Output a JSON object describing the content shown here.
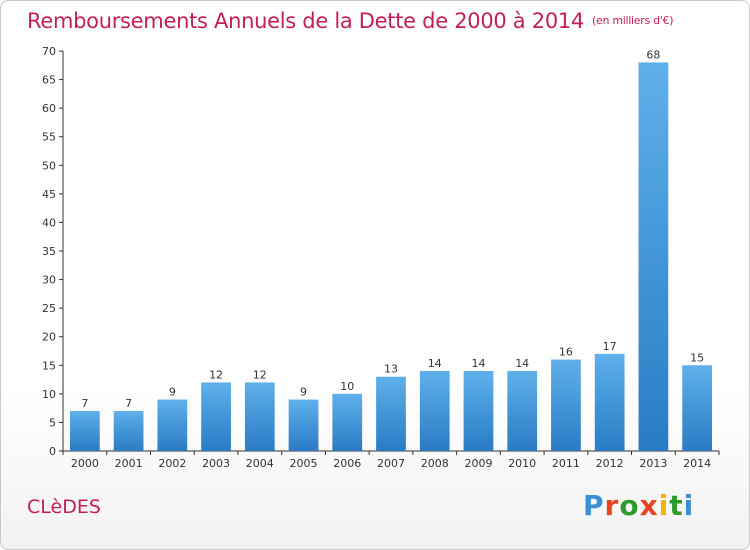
{
  "title": "Remboursements Annuels de la Dette de 2000 à 2014",
  "unit": "(en milliers d'€)",
  "commune": "CLèDES",
  "logo": {
    "text": "Proxiti",
    "letters": [
      "P",
      "r",
      "o",
      "x",
      "i",
      "t",
      "i"
    ],
    "colors": [
      "#3a8fd6",
      "#e8451e",
      "#2e9a2e",
      "#e8451e",
      "#f0b400",
      "#2e9a2e",
      "#3a8fd6"
    ]
  },
  "colors": {
    "title": "#c41e5a",
    "bar_top": "#5fb0ea",
    "bar_bottom": "#2a7bc4"
  },
  "chart_data": {
    "type": "bar",
    "title": "Remboursements Annuels de la Dette de 2000 à 2014",
    "xlabel": "",
    "ylabel": "",
    "ylim": [
      0,
      70
    ],
    "yticks": [
      0,
      5,
      10,
      15,
      20,
      25,
      30,
      35,
      40,
      45,
      50,
      55,
      60,
      65,
      70
    ],
    "grid": false,
    "categories": [
      "2000",
      "2001",
      "2002",
      "2003",
      "2004",
      "2005",
      "2006",
      "2007",
      "2008",
      "2009",
      "2010",
      "2011",
      "2012",
      "2013",
      "2014"
    ],
    "values": [
      7,
      7,
      9,
      12,
      12,
      9,
      10,
      13,
      14,
      14,
      14,
      16,
      17,
      68,
      15
    ]
  }
}
